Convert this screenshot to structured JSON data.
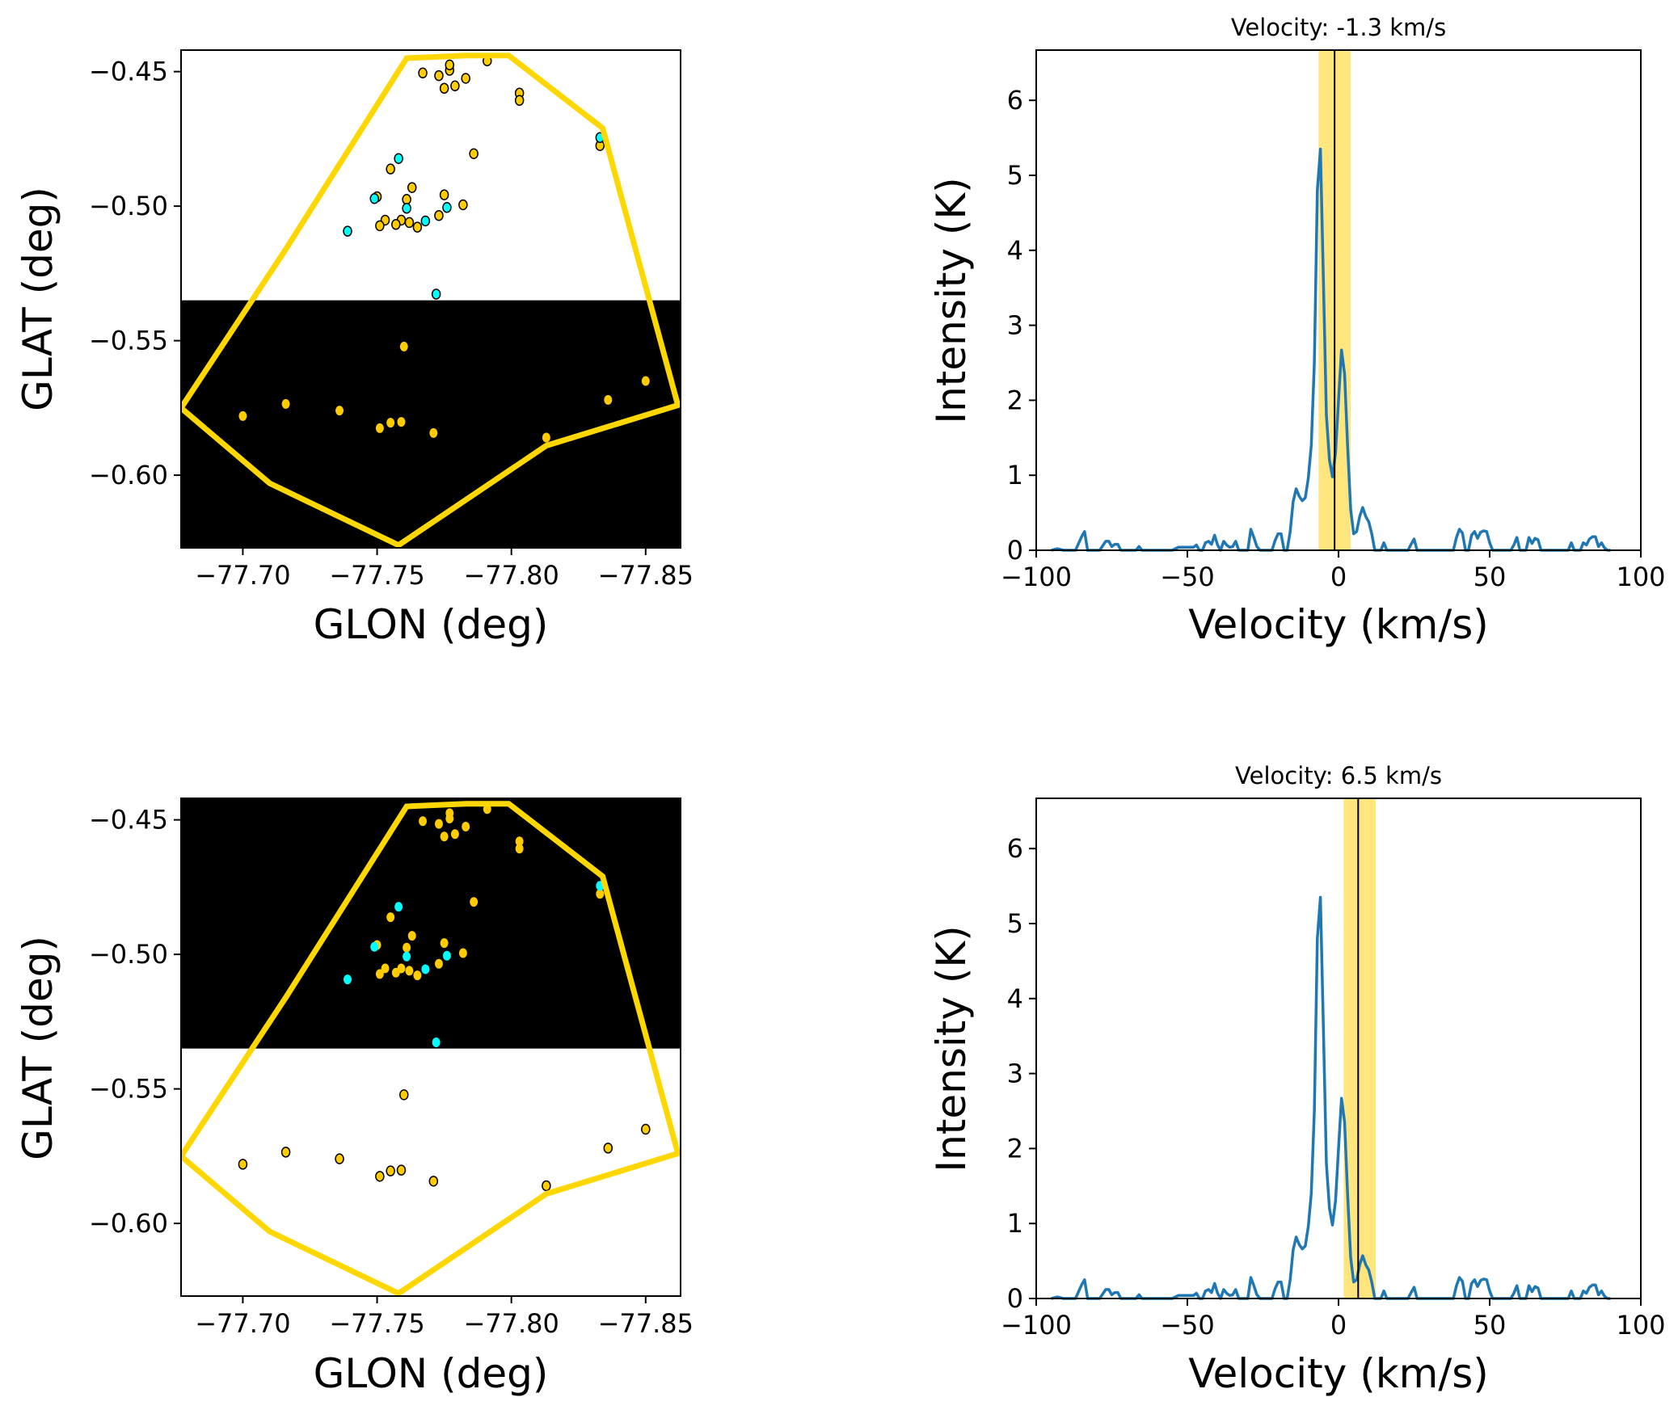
{
  "chart_data": [
    {
      "id": "map-top",
      "type": "scatter",
      "xlabel": "GLON (deg)",
      "ylabel": "GLAT (deg)",
      "xlim": [
        -77.677,
        -77.863
      ],
      "ylim": [
        -0.627,
        -0.442
      ],
      "xticks": [
        -77.7,
        -77.75,
        -77.8,
        -77.85
      ],
      "xtick_labels": [
        "−77.70",
        "−77.75",
        "−77.80",
        "−77.85"
      ],
      "yticks": [
        -0.45,
        -0.5,
        -0.55,
        -0.6
      ],
      "ytick_labels": [
        "−0.45",
        "−0.50",
        "−0.55",
        "−0.60"
      ],
      "mask": {
        "region": "below",
        "glat_boundary": -0.535,
        "color": "#000000"
      },
      "polygon_color": "#FFD700",
      "polygon": [
        [
          -77.677,
          -0.575
        ],
        [
          -77.716,
          -0.516
        ],
        [
          -77.761,
          -0.445
        ],
        [
          -77.783,
          -0.444
        ],
        [
          -77.799,
          -0.444
        ],
        [
          -77.834,
          -0.471
        ],
        [
          -77.862,
          -0.574
        ],
        [
          -77.813,
          -0.589
        ],
        [
          -77.758,
          -0.626
        ],
        [
          -77.71,
          -0.603
        ]
      ],
      "point_colors": {
        "yellow": "#FFCC00",
        "cyan": "#00FFFF"
      },
      "points": [
        {
          "l": -77.773,
          "b": -0.4515,
          "c": "yellow"
        },
        {
          "l": -77.777,
          "b": -0.4495,
          "c": "yellow"
        },
        {
          "l": -77.777,
          "b": -0.4475,
          "c": "yellow"
        },
        {
          "l": -77.767,
          "b": -0.4505,
          "c": "yellow"
        },
        {
          "l": -77.783,
          "b": -0.4525,
          "c": "yellow"
        },
        {
          "l": -77.775,
          "b": -0.4562,
          "c": "yellow"
        },
        {
          "l": -77.779,
          "b": -0.4553,
          "c": "yellow"
        },
        {
          "l": -77.803,
          "b": -0.458,
          "c": "yellow"
        },
        {
          "l": -77.803,
          "b": -0.4607,
          "c": "yellow"
        },
        {
          "l": -77.791,
          "b": -0.446,
          "c": "yellow"
        },
        {
          "l": -77.833,
          "b": -0.4775,
          "c": "yellow"
        },
        {
          "l": -77.833,
          "b": -0.4745,
          "c": "cyan"
        },
        {
          "l": -77.786,
          "b": -0.4805,
          "c": "yellow"
        },
        {
          "l": -77.758,
          "b": -0.4823,
          "c": "cyan"
        },
        {
          "l": -77.755,
          "b": -0.4862,
          "c": "yellow"
        },
        {
          "l": -77.763,
          "b": -0.4931,
          "c": "yellow"
        },
        {
          "l": -77.775,
          "b": -0.4958,
          "c": "yellow"
        },
        {
          "l": -77.782,
          "b": -0.4995,
          "c": "yellow"
        },
        {
          "l": -77.75,
          "b": -0.4965,
          "c": "yellow"
        },
        {
          "l": -77.749,
          "b": -0.4972,
          "c": "cyan"
        },
        {
          "l": -77.761,
          "b": -0.4975,
          "c": "yellow"
        },
        {
          "l": -77.761,
          "b": -0.5008,
          "c": "cyan"
        },
        {
          "l": -77.776,
          "b": -0.5005,
          "c": "cyan"
        },
        {
          "l": -77.773,
          "b": -0.5035,
          "c": "yellow"
        },
        {
          "l": -77.768,
          "b": -0.5055,
          "c": "cyan"
        },
        {
          "l": -77.753,
          "b": -0.5052,
          "c": "yellow"
        },
        {
          "l": -77.751,
          "b": -0.5073,
          "c": "yellow"
        },
        {
          "l": -77.759,
          "b": -0.5052,
          "c": "yellow"
        },
        {
          "l": -77.757,
          "b": -0.5068,
          "c": "yellow"
        },
        {
          "l": -77.762,
          "b": -0.5061,
          "c": "yellow"
        },
        {
          "l": -77.765,
          "b": -0.5078,
          "c": "yellow"
        },
        {
          "l": -77.739,
          "b": -0.5093,
          "c": "cyan"
        },
        {
          "l": -77.772,
          "b": -0.5327,
          "c": "cyan"
        },
        {
          "l": -77.76,
          "b": -0.5522,
          "c": "yellow"
        },
        {
          "l": -77.7,
          "b": -0.578,
          "c": "yellow"
        },
        {
          "l": -77.716,
          "b": -0.5735,
          "c": "yellow"
        },
        {
          "l": -77.736,
          "b": -0.576,
          "c": "yellow"
        },
        {
          "l": -77.751,
          "b": -0.5825,
          "c": "yellow"
        },
        {
          "l": -77.755,
          "b": -0.5805,
          "c": "yellow"
        },
        {
          "l": -77.759,
          "b": -0.5802,
          "c": "yellow"
        },
        {
          "l": -77.771,
          "b": -0.5843,
          "c": "yellow"
        },
        {
          "l": -77.813,
          "b": -0.586,
          "c": "yellow"
        },
        {
          "l": -77.836,
          "b": -0.572,
          "c": "yellow"
        },
        {
          "l": -77.85,
          "b": -0.565,
          "c": "yellow"
        }
      ]
    },
    {
      "id": "spec-top",
      "type": "line",
      "title": "Velocity: -1.3 km/s",
      "xlabel": "Velocity (km/s)",
      "ylabel": "Intensity (K)",
      "xlim": [
        -100,
        100
      ],
      "ylim": [
        0,
        6.67
      ],
      "xticks": [
        -100,
        -50,
        0,
        50,
        100
      ],
      "xtick_labels": [
        "−100",
        "−50",
        "0",
        "50",
        "100"
      ],
      "yticks": [
        0,
        1,
        2,
        3,
        4,
        5,
        6
      ],
      "ytick_labels": [
        "0",
        "1",
        "2",
        "3",
        "4",
        "5",
        "6"
      ],
      "marker_velocity": -1.3,
      "band": [
        -6.6,
        4.0
      ],
      "line_color": "#1f77b4",
      "band_color": "#FFE066"
    },
    {
      "id": "map-bottom",
      "type": "scatter",
      "xlabel": "GLON (deg)",
      "ylabel": "GLAT (deg)",
      "xlim": [
        -77.677,
        -77.863
      ],
      "ylim": [
        -0.627,
        -0.442
      ],
      "xticks": [
        -77.7,
        -77.75,
        -77.8,
        -77.85
      ],
      "xtick_labels": [
        "−77.70",
        "−77.75",
        "−77.80",
        "−77.85"
      ],
      "yticks": [
        -0.45,
        -0.5,
        -0.55,
        -0.6
      ],
      "ytick_labels": [
        "−0.45",
        "−0.50",
        "−0.55",
        "−0.60"
      ],
      "mask": {
        "region": "above",
        "glat_boundary": -0.535,
        "color": "#000000"
      }
    },
    {
      "id": "spec-bottom",
      "type": "line",
      "title": "Velocity: 6.5 km/s",
      "xlabel": "Velocity (km/s)",
      "ylabel": "Intensity (K)",
      "xlim": [
        -100,
        100
      ],
      "ylim": [
        0,
        6.67
      ],
      "xticks": [
        -100,
        -50,
        0,
        50,
        100
      ],
      "xtick_labels": [
        "−100",
        "−50",
        "0",
        "50",
        "100"
      ],
      "yticks": [
        0,
        1,
        2,
        3,
        4,
        5,
        6
      ],
      "ytick_labels": [
        "0",
        "1",
        "2",
        "3",
        "4",
        "5",
        "6"
      ],
      "marker_velocity": 6.5,
      "band": [
        1.7,
        12.3
      ],
      "line_color": "#1f77b4",
      "band_color": "#FFE066"
    }
  ],
  "spectrum": {
    "velocity": [
      -95,
      -93,
      -91,
      -89,
      -87,
      -85,
      -84,
      -83,
      -82,
      -81,
      -79,
      -77,
      -76,
      -75,
      -74,
      -73,
      -72,
      -71,
      -69,
      -67,
      -66,
      -65,
      -63,
      -61,
      -59,
      -57,
      -55,
      -53,
      -51,
      -50,
      -49,
      -48,
      -47,
      -46,
      -45,
      -44,
      -43,
      -42,
      -41,
      -40,
      -39,
      -38,
      -37,
      -36,
      -35,
      -34,
      -33,
      -32,
      -31,
      -30,
      -29,
      -28,
      -27,
      -26,
      -25,
      -24,
      -23,
      -22,
      -21,
      -20,
      -19,
      -18,
      -17,
      -16,
      -15,
      -14,
      -13,
      -12,
      -11,
      -10,
      -9,
      -8,
      -7,
      -6,
      -5,
      -4,
      -3,
      -2,
      -1,
      0,
      1,
      2,
      3,
      4,
      5,
      6,
      7,
      8,
      9,
      10,
      11,
      12,
      13,
      14,
      15,
      16,
      17,
      18,
      19,
      20,
      21,
      22,
      23,
      24,
      25,
      26,
      27,
      28,
      29,
      30,
      31,
      32,
      33,
      34,
      35,
      36,
      37,
      38,
      39,
      40,
      41,
      42,
      43,
      44,
      45,
      46,
      47,
      48,
      49,
      50,
      51,
      52,
      53,
      54,
      55,
      56,
      57,
      58,
      59,
      60,
      61,
      62,
      63,
      64,
      65,
      66,
      67,
      68,
      69,
      70,
      71,
      72,
      73,
      74,
      75,
      76,
      77,
      78,
      79,
      80,
      81,
      82,
      83,
      84,
      85,
      86,
      87,
      88,
      89,
      90,
      91,
      92,
      93,
      94,
      95,
      96,
      97,
      98
    ],
    "intensity": [
      0,
      0.02,
      0,
      0,
      0,
      0.18,
      0.25,
      0,
      0,
      0,
      0,
      0.12,
      0.12,
      0.05,
      0.08,
      0.08,
      0,
      0,
      0,
      0,
      0.05,
      0,
      0,
      0,
      0,
      0,
      0,
      0.04,
      0.04,
      0.04,
      0.04,
      0.04,
      0.07,
      0,
      0,
      0.1,
      0.12,
      0.08,
      0.2,
      0.07,
      0,
      0.12,
      0.07,
      0.04,
      0.05,
      0.12,
      0,
      0,
      0,
      0,
      0.28,
      0.17,
      0.05,
      0,
      0,
      0,
      0,
      0,
      0.13,
      0.22,
      0.22,
      0,
      0,
      0.25,
      0.65,
      0.82,
      0.72,
      0.66,
      0.7,
      0.96,
      1.4,
      2.5,
      4.8,
      5.35,
      3.6,
      1.8,
      1.2,
      0.98,
      1.3,
      2.0,
      2.67,
      2.35,
      1.4,
      0.55,
      0.22,
      0.25,
      0.45,
      0.57,
      0.45,
      0.38,
      0.22,
      0,
      0,
      0,
      0.1,
      0,
      0,
      0,
      0,
      0,
      0,
      0,
      0,
      0.08,
      0.15,
      0,
      0,
      0,
      0,
      0,
      0,
      0,
      0,
      0,
      0,
      0,
      0,
      0,
      0.17,
      0.28,
      0.23,
      0,
      0,
      0.2,
      0.25,
      0.16,
      0.24,
      0.26,
      0.25,
      0.1,
      0,
      0,
      0,
      0,
      0,
      0,
      0,
      0.07,
      0.17,
      0,
      0,
      0,
      0.17,
      0.09,
      0.16,
      0.14,
      0,
      0,
      0,
      0,
      0,
      0,
      0,
      0,
      0,
      0,
      0.1,
      0,
      0,
      0,
      0.1,
      0.07,
      0.15,
      0.18,
      0.18,
      0.05,
      0.1,
      0.03,
      0,
      0
    ]
  }
}
